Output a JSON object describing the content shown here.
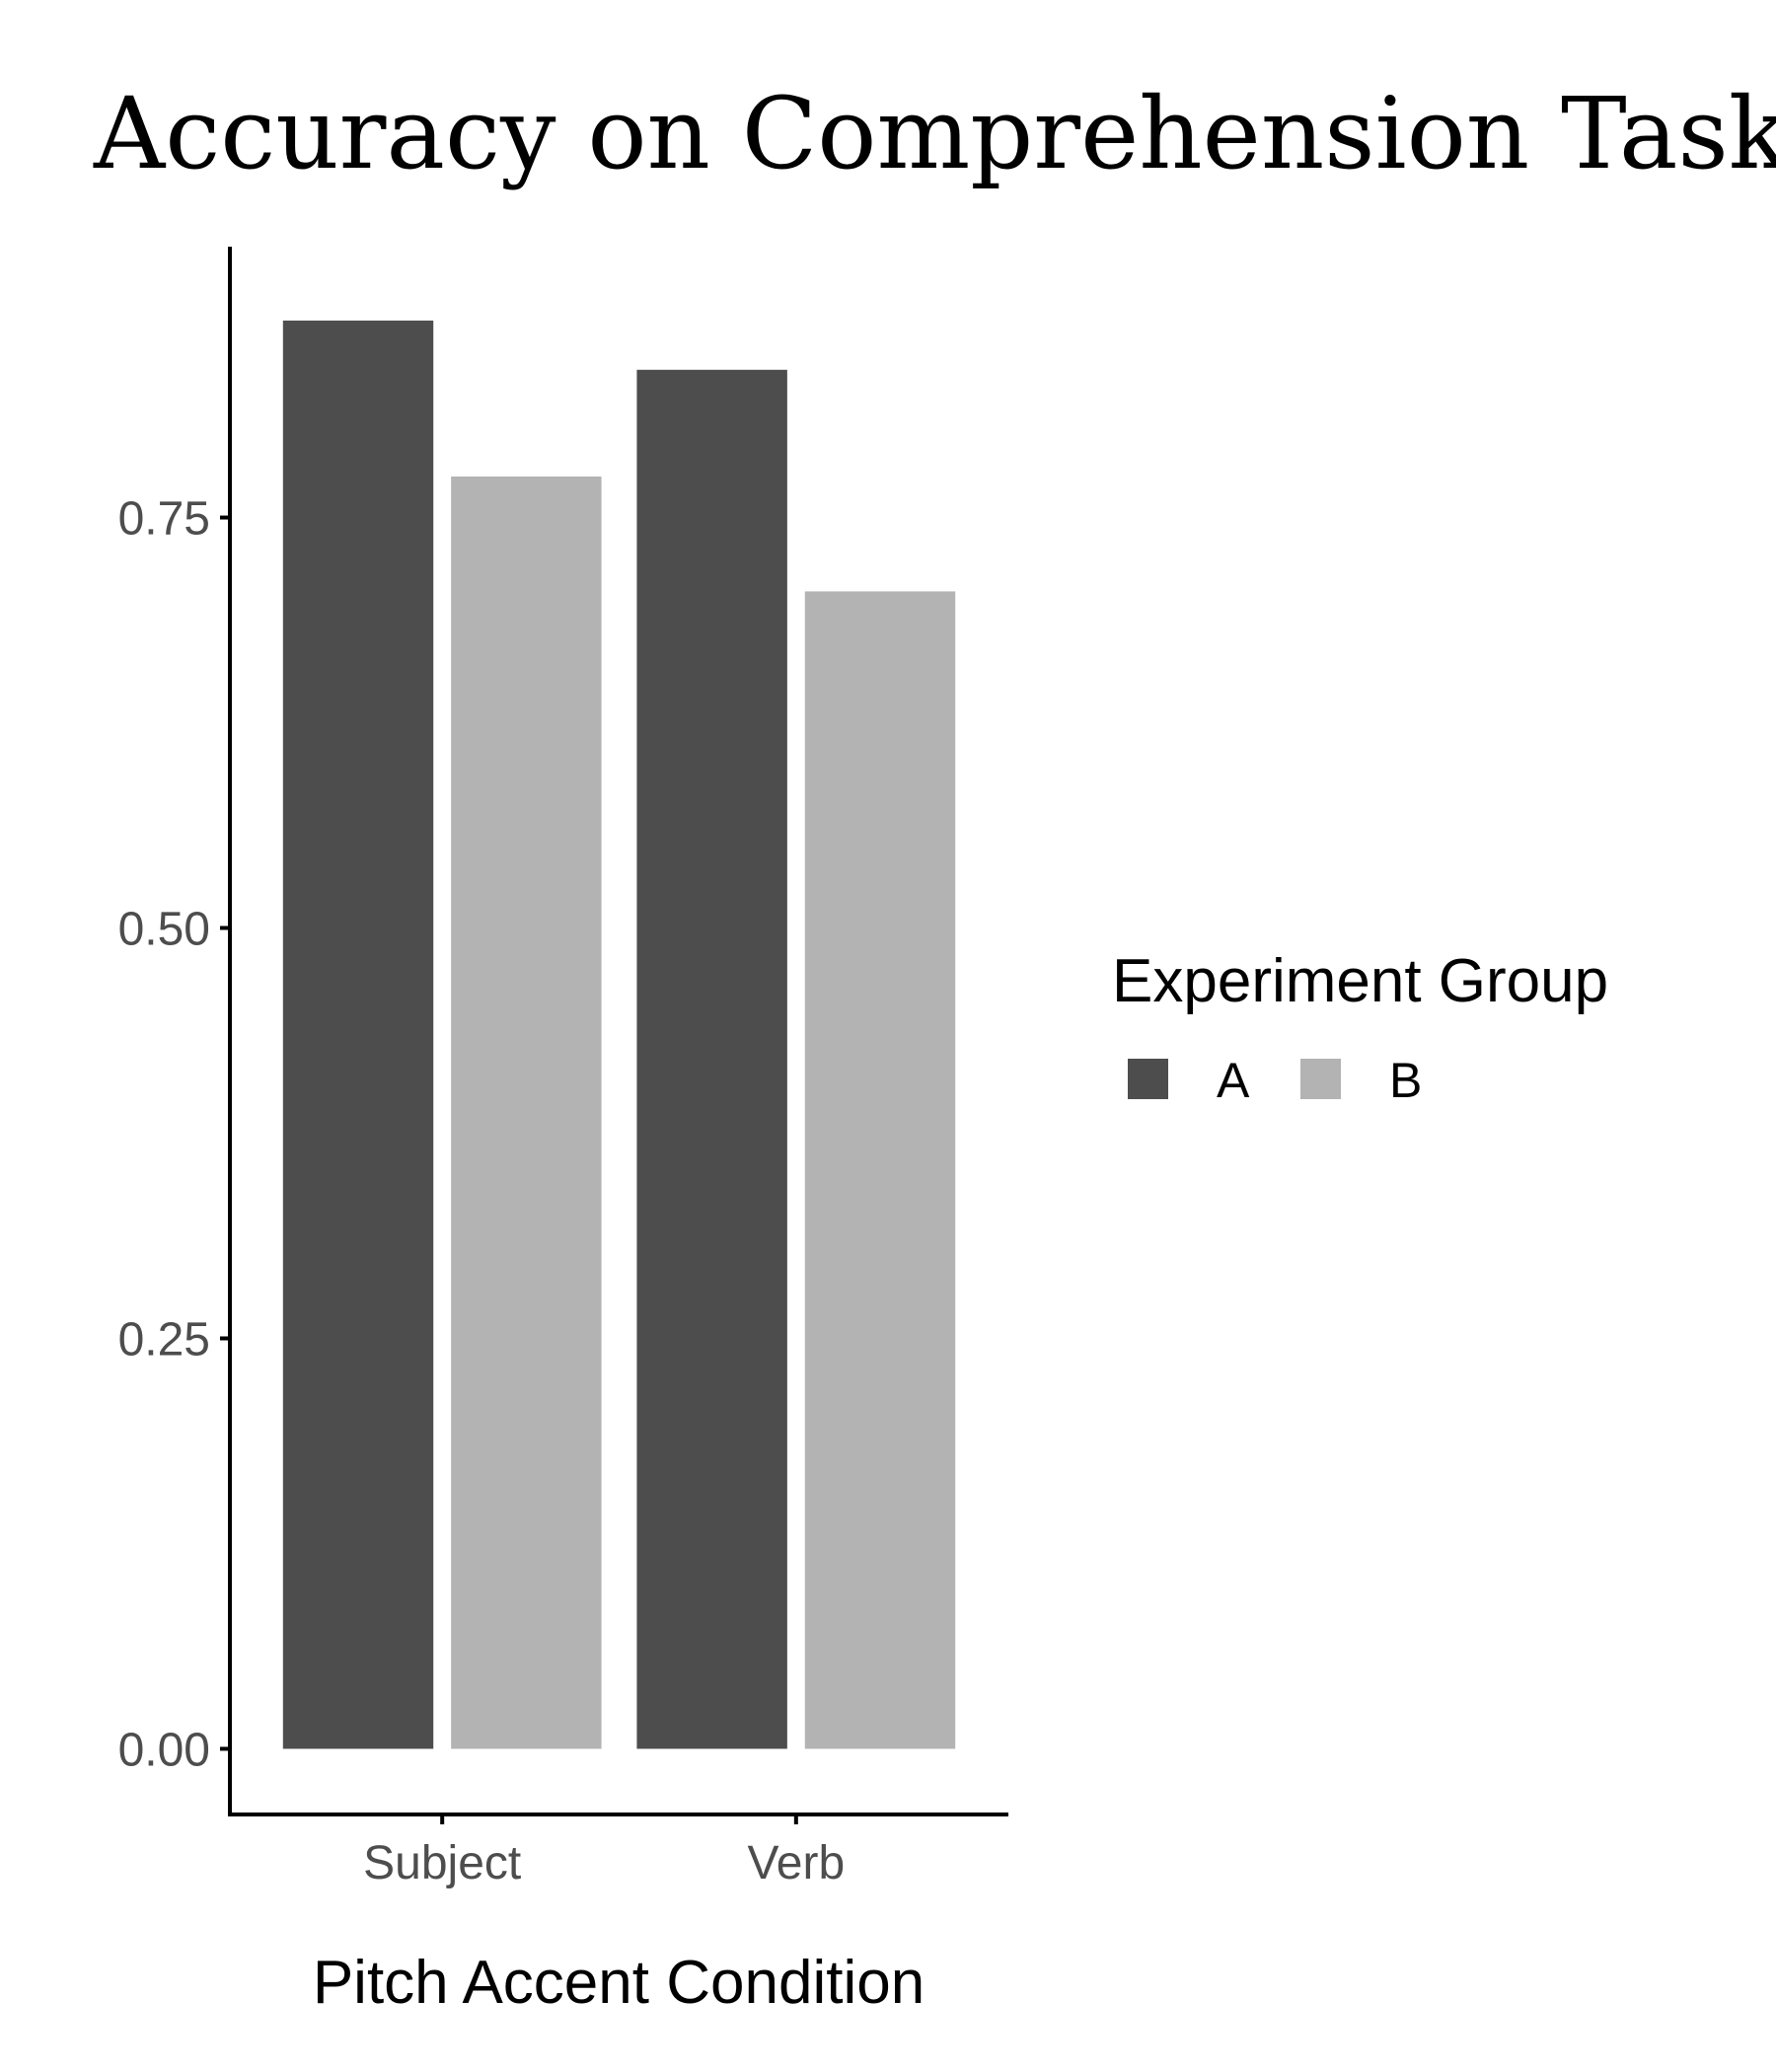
{
  "chart_data": {
    "type": "bar",
    "title": "Accuracy on Comprehension Task",
    "xlabel": "Pitch Accent Condition",
    "ylabel": "",
    "categories": [
      "Subject",
      "Verb"
    ],
    "series": [
      {
        "name": "A",
        "values": [
          0.87,
          0.84
        ],
        "color": "#4d4d4d"
      },
      {
        "name": "B",
        "values": [
          0.775,
          0.705
        ],
        "color": "#b3b3b3"
      }
    ],
    "yticks": [
      0.0,
      0.25,
      0.5,
      0.75
    ],
    "ytick_labels": [
      "0.00",
      "0.25",
      "0.50",
      "0.75"
    ],
    "ylim": [
      -0.04,
      0.915
    ],
    "grid": false,
    "legend": {
      "title": "Experiment Group",
      "placement": "right"
    }
  }
}
